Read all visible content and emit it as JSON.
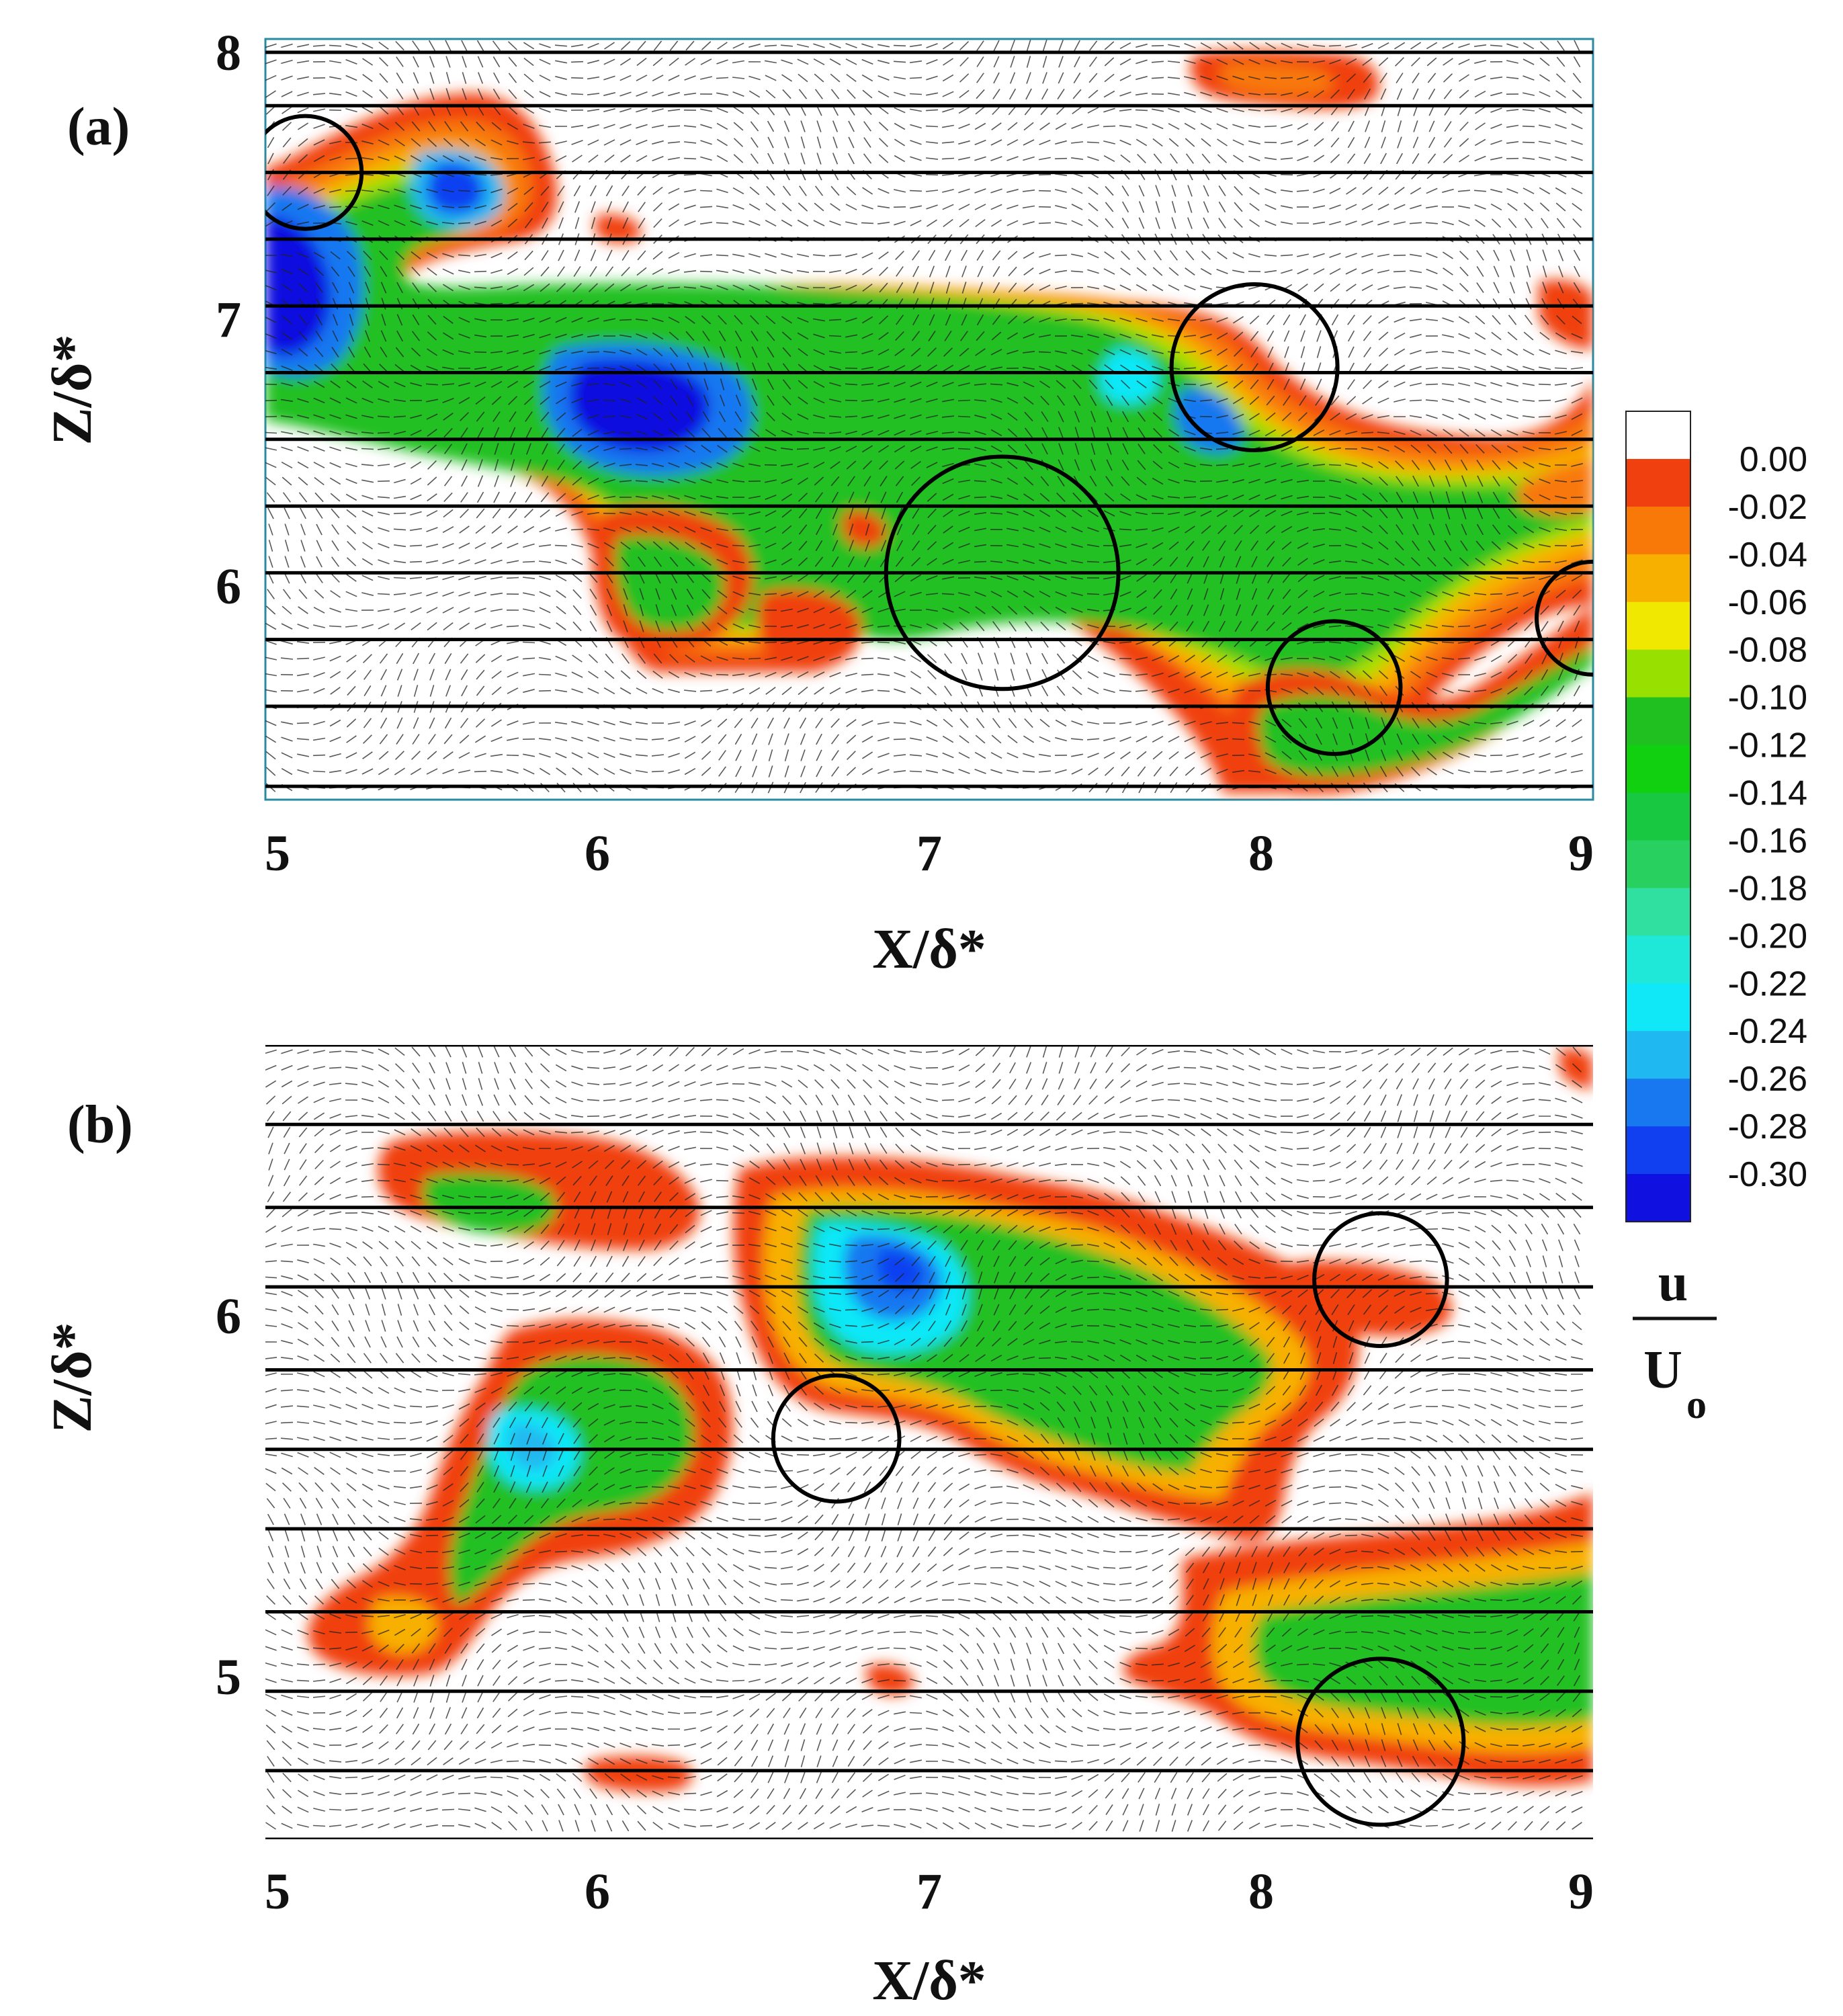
{
  "chart_data": [
    {
      "type": "vector-contour",
      "panel_label": "(a)",
      "xlabel": "X/δ*",
      "ylabel": "Z/δ*",
      "xlim": [
        5,
        9
      ],
      "ylim": [
        5.2,
        8.05
      ],
      "xticks": [
        "5",
        "6",
        "7",
        "8",
        "9"
      ],
      "yticks": [
        "6",
        "7",
        "8"
      ],
      "ytick_values": [
        6,
        7,
        8
      ],
      "hlines": [
        8.0,
        7.8,
        7.55,
        7.3,
        7.05,
        6.8,
        6.55,
        6.3,
        6.05,
        5.8,
        5.55,
        5.25
      ],
      "vortex_circles": [
        {
          "x": 5.12,
          "z": 7.55,
          "r": 0.17
        },
        {
          "x": 7.22,
          "z": 6.05,
          "r": 0.35
        },
        {
          "x": 7.98,
          "z": 6.82,
          "r": 0.25
        },
        {
          "x": 8.22,
          "z": 5.62,
          "r": 0.2
        },
        {
          "x": 9.0,
          "z": 5.88,
          "r": 0.17
        }
      ]
    },
    {
      "type": "vector-contour",
      "panel_label": "(b)",
      "xlabel": "X/δ*",
      "ylabel": "Z/δ*",
      "xlim": [
        5,
        9
      ],
      "ylim": [
        4.55,
        6.75
      ],
      "xticks": [
        "5",
        "6",
        "7",
        "8",
        "9"
      ],
      "yticks": [
        "5",
        "6"
      ],
      "ytick_values": [
        5,
        6
      ],
      "hlines": [
        6.75,
        6.53,
        6.3,
        6.08,
        5.85,
        5.63,
        5.41,
        5.18,
        4.96,
        4.74,
        4.55
      ],
      "vortex_circles": [
        {
          "x": 8.36,
          "z": 6.1,
          "r": 0.2
        },
        {
          "x": 6.72,
          "z": 5.66,
          "r": 0.19
        },
        {
          "x": 8.36,
          "z": 4.82,
          "r": 0.25
        }
      ]
    }
  ],
  "colorbar": {
    "labels": [
      "0.00",
      "-0.02",
      "-0.04",
      "-0.06",
      "-0.08",
      "-0.10",
      "-0.12",
      "-0.14",
      "-0.16",
      "-0.18",
      "-0.20",
      "-0.22",
      "-0.24",
      "-0.26",
      "-0.28",
      "-0.30"
    ],
    "colors": [
      "#ffffff",
      "#f04010",
      "#f87808",
      "#f8b000",
      "#f0e800",
      "#98e000",
      "#20c020",
      "#10d010",
      "#18c840",
      "#28d060",
      "#30e0a0",
      "#20e8d8",
      "#10e8f8",
      "#20b8f0",
      "#1878f0",
      "#1040f0",
      "#1010e0"
    ],
    "quantity_numerator": "u",
    "quantity_denominator": "U",
    "quantity_subscript": "o"
  }
}
